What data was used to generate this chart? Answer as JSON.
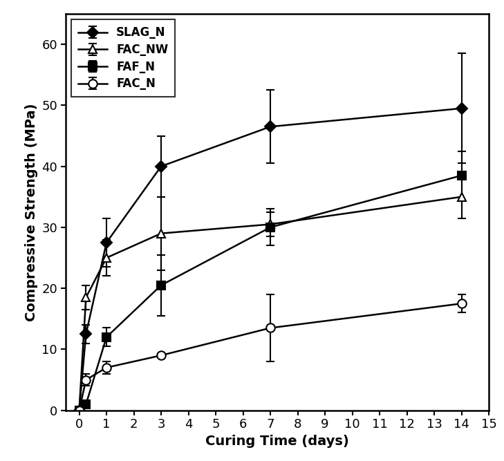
{
  "series": [
    {
      "label": "SLAG_N",
      "x": [
        0,
        0.25,
        1,
        3,
        7,
        14
      ],
      "y": [
        0,
        12.5,
        27.5,
        40,
        46.5,
        49.5
      ],
      "yerr": [
        0,
        1.5,
        4,
        5,
        6,
        9
      ],
      "marker": "D",
      "marker_fill": "black",
      "linestyle": "-",
      "color": "black",
      "markersize": 8
    },
    {
      "label": "FAC_NW",
      "x": [
        0,
        0.25,
        1,
        3,
        7,
        14
      ],
      "y": [
        0,
        18.5,
        25,
        29,
        30.5,
        35
      ],
      "yerr": [
        0,
        2,
        3,
        6,
        2,
        3.5
      ],
      "marker": "^",
      "marker_fill": "white",
      "linestyle": "-",
      "color": "black",
      "markersize": 9
    },
    {
      "label": "FAF_N",
      "x": [
        0,
        0.25,
        1,
        3,
        7,
        14
      ],
      "y": [
        0,
        1,
        12,
        20.5,
        30,
        38.5
      ],
      "yerr": [
        0,
        0.5,
        1.5,
        5,
        3,
        4
      ],
      "marker": "s",
      "marker_fill": "black",
      "linestyle": "-",
      "color": "black",
      "markersize": 8
    },
    {
      "label": "FAC_N",
      "x": [
        0,
        0.25,
        1,
        3,
        7,
        14
      ],
      "y": [
        0,
        5,
        7,
        9,
        13.5,
        17.5
      ],
      "yerr": [
        0,
        1,
        1,
        0,
        5.5,
        1.5
      ],
      "marker": "o",
      "marker_fill": "white",
      "linestyle": "-",
      "color": "black",
      "markersize": 9
    }
  ],
  "xlabel": "Curing Time (days)",
  "ylabel": "Compressive Strength (MPa)",
  "xlim": [
    -0.5,
    15
  ],
  "ylim": [
    0,
    65
  ],
  "yticks": [
    0,
    10,
    20,
    30,
    40,
    50,
    60
  ],
  "xticks": [
    0,
    1,
    2,
    3,
    4,
    5,
    6,
    7,
    8,
    9,
    10,
    11,
    12,
    13,
    14,
    15
  ],
  "figsize": [
    7.29,
    6.67
  ],
  "dpi": 100,
  "background_color": "#ffffff",
  "legend_loc": "upper left",
  "legend_fontsize": 12,
  "axis_label_fontsize": 14,
  "tick_fontsize": 13
}
